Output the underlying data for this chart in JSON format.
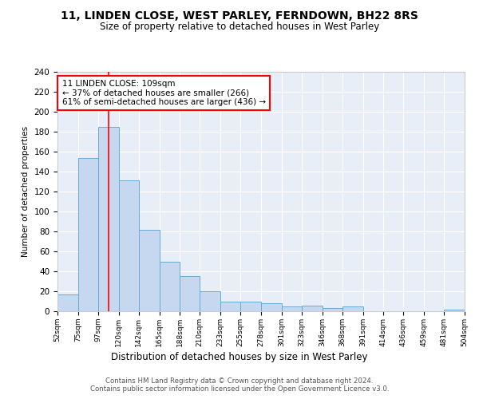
{
  "title": "11, LINDEN CLOSE, WEST PARLEY, FERNDOWN, BH22 8RS",
  "subtitle": "Size of property relative to detached houses in West Parley",
  "xlabel": "Distribution of detached houses by size in West Parley",
  "ylabel": "Number of detached properties",
  "bar_color": "#c5d8f0",
  "bar_edge_color": "#6aaad4",
  "background_color": "#e8eef8",
  "grid_color": "white",
  "bins": [
    52,
    75,
    97,
    120,
    142,
    165,
    188,
    210,
    233,
    255,
    278,
    301,
    323,
    346,
    368,
    391,
    414,
    436,
    459,
    481,
    504
  ],
  "counts": [
    17,
    154,
    185,
    131,
    82,
    50,
    35,
    20,
    10,
    10,
    8,
    5,
    6,
    3,
    5,
    0,
    0,
    0,
    0,
    2
  ],
  "tick_labels": [
    "52sqm",
    "75sqm",
    "97sqm",
    "120sqm",
    "142sqm",
    "165sqm",
    "188sqm",
    "210sqm",
    "233sqm",
    "255sqm",
    "278sqm",
    "301sqm",
    "323sqm",
    "346sqm",
    "368sqm",
    "391sqm",
    "414sqm",
    "436sqm",
    "459sqm",
    "481sqm",
    "504sqm"
  ],
  "red_line_x": 109,
  "annotation_text": "11 LINDEN CLOSE: 109sqm\n← 37% of detached houses are smaller (266)\n61% of semi-detached houses are larger (436) →",
  "footer_text": "Contains HM Land Registry data © Crown copyright and database right 2024.\nContains public sector information licensed under the Open Government Licence v3.0.",
  "ylim": [
    0,
    240
  ],
  "yticks": [
    0,
    20,
    40,
    60,
    80,
    100,
    120,
    140,
    160,
    180,
    200,
    220,
    240
  ]
}
